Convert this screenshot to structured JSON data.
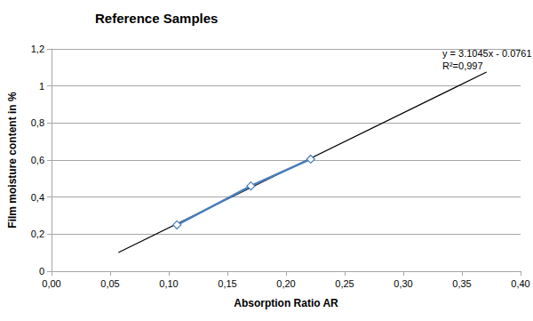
{
  "chart_data": {
    "type": "line",
    "title": "Reference Samples",
    "x_label": "Absorption Ratio AR",
    "y_label": "Film moisture content in %",
    "annotations": [
      "y = 3.1045x - 0.0761",
      "R²=0,997"
    ],
    "xlim": [
      0,
      0.4
    ],
    "xticks": [
      {
        "value": 0,
        "label": "0,00"
      },
      {
        "value": 0.05,
        "label": "0,05"
      },
      {
        "value": 0.1,
        "label": "0,10"
      },
      {
        "value": 0.15,
        "label": "0,15"
      },
      {
        "value": 0.2,
        "label": "0,20"
      },
      {
        "value": 0.25,
        "label": "0,25"
      },
      {
        "value": 0.3,
        "label": "0,30"
      },
      {
        "value": 0.35,
        "label": "0,35"
      },
      {
        "value": 0.4,
        "label": "0,40"
      }
    ],
    "ylim": [
      0,
      1.2
    ],
    "yticks": [
      0,
      {
        "value": 0.2,
        "label": "0,2"
      },
      {
        "value": 0.4,
        "label": "0,4"
      },
      {
        "value": 0.6,
        "label": "0,6"
      },
      {
        "value": 0.8,
        "label": "0,8"
      },
      1,
      {
        "value": 1.2,
        "label": "1,2"
      }
    ],
    "grid": true,
    "series": [
      {
        "x": [
          0.107,
          0.17,
          0.221
        ],
        "values": [
          0.25,
          0.46,
          0.605
        ],
        "color": "#4a7ebb",
        "marker": "diamond",
        "line_style": "solid"
      },
      {
        "x": [
          0.057,
          0.371
        ],
        "values": [
          0.101,
          1.075
        ],
        "color": "#000000",
        "marker": "none",
        "line_style": "solid"
      }
    ]
  }
}
